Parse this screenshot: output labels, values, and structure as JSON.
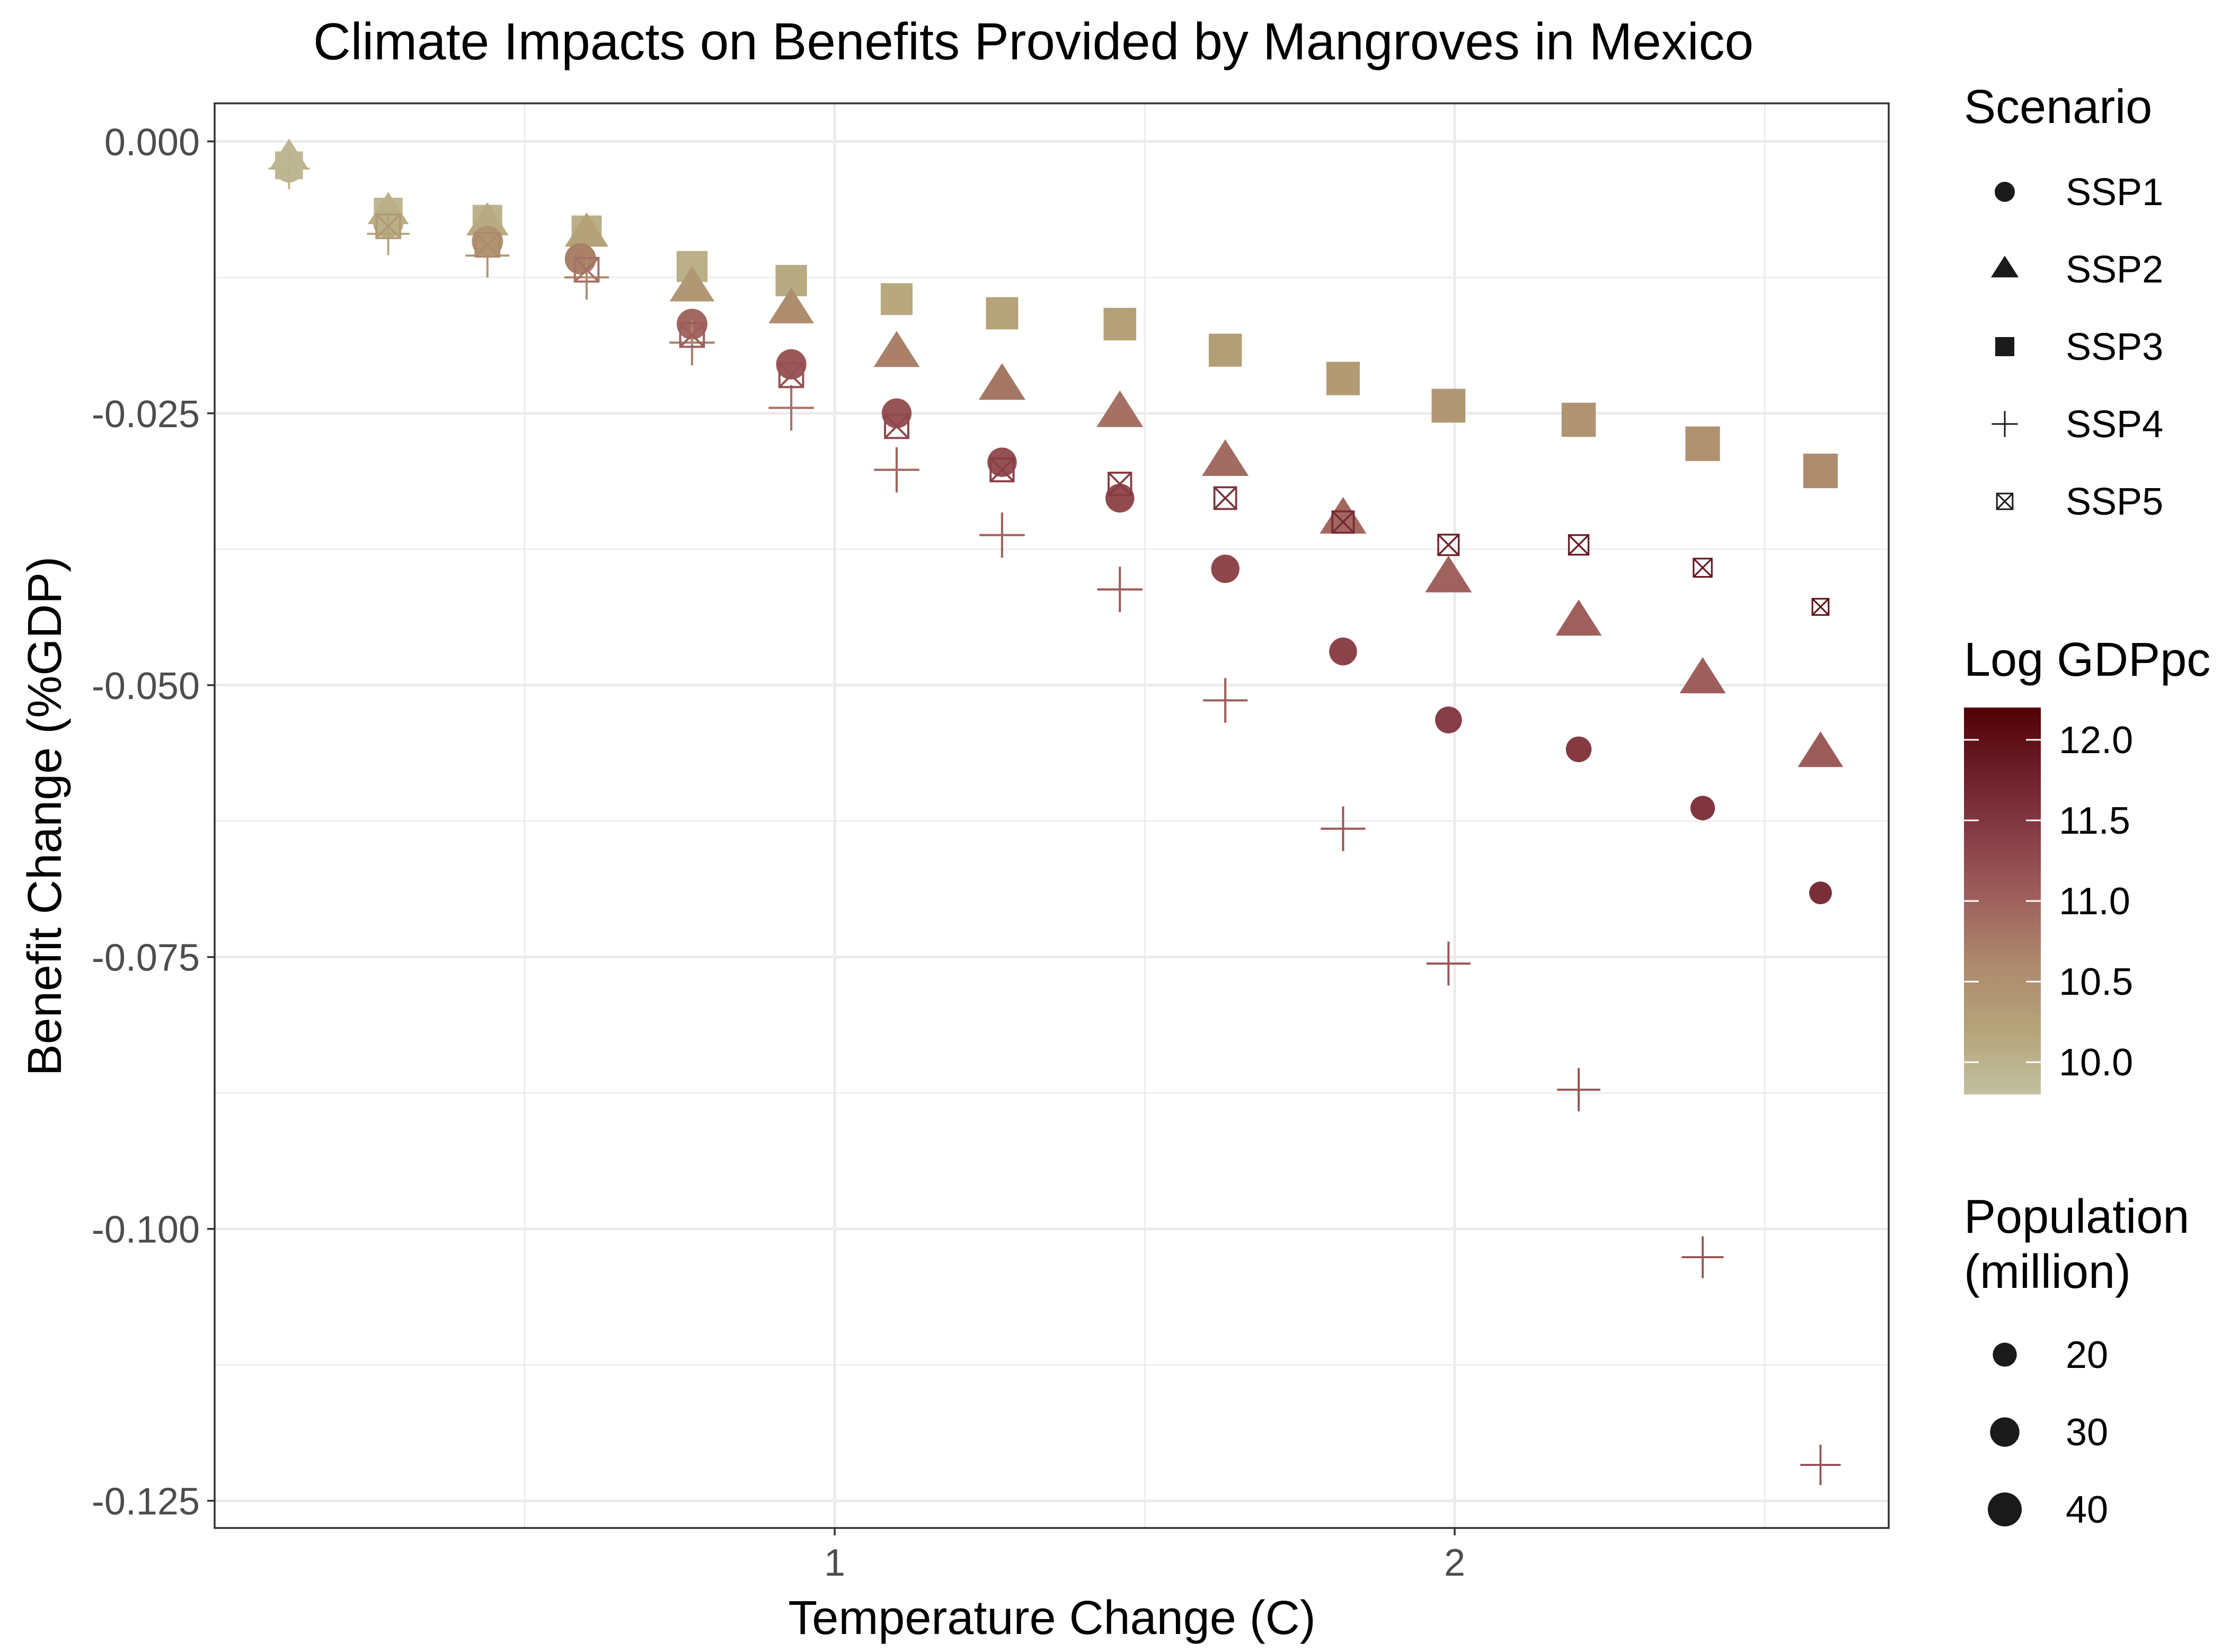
{
  "chart_data": {
    "type": "scatter",
    "title": "Climate Impacts on Benefits Provided by Mangroves in Mexico",
    "xlabel": "Temperature Change (C)",
    "ylabel": "Benefit Change (%GDP)",
    "xlim": [
      0.0,
      2.7
    ],
    "ylim": [
      -0.1275,
      0.0035
    ],
    "x_ticks": [
      1,
      2
    ],
    "x_tick_labels": [
      "1",
      "2"
    ],
    "y_ticks": [
      0.0,
      -0.025,
      -0.05,
      -0.075,
      -0.1,
      -0.125
    ],
    "y_tick_labels": [
      "0.000",
      "-0.025",
      "-0.050",
      "-0.075",
      "-0.100",
      "-0.125"
    ],
    "grid": true,
    "series": [
      {
        "name": "SSP1",
        "shape": "circle",
        "points": [
          {
            "x": 0.12,
            "y": -0.0025,
            "gdp": 9.95,
            "pop": 27
          },
          {
            "x": 0.28,
            "y": -0.0075,
            "gdp": 10.05,
            "pop": 32
          },
          {
            "x": 0.44,
            "y": -0.0092,
            "gdp": 10.45,
            "pop": 34
          },
          {
            "x": 0.59,
            "y": -0.0108,
            "gdp": 10.7,
            "pop": 34
          },
          {
            "x": 0.77,
            "y": -0.0168,
            "gdp": 10.95,
            "pop": 33
          },
          {
            "x": 0.93,
            "y": -0.0205,
            "gdp": 11.1,
            "pop": 32
          },
          {
            "x": 1.1,
            "y": -0.025,
            "gdp": 11.15,
            "pop": 31
          },
          {
            "x": 1.27,
            "y": -0.0295,
            "gdp": 11.2,
            "pop": 30
          },
          {
            "x": 1.46,
            "y": -0.0328,
            "gdp": 11.25,
            "pop": 29
          },
          {
            "x": 1.63,
            "y": -0.0393,
            "gdp": 11.3,
            "pop": 28
          },
          {
            "x": 1.82,
            "y": -0.0469,
            "gdp": 11.35,
            "pop": 27
          },
          {
            "x": 1.99,
            "y": -0.0532,
            "gdp": 11.4,
            "pop": 25
          },
          {
            "x": 2.2,
            "y": -0.0559,
            "gdp": 11.45,
            "pop": 23
          },
          {
            "x": 2.4,
            "y": -0.0613,
            "gdp": 11.5,
            "pop": 21
          },
          {
            "x": 2.59,
            "y": -0.0691,
            "gdp": 11.6,
            "pop": 18
          }
        ]
      },
      {
        "name": "SSP2",
        "shape": "triangle",
        "points": [
          {
            "x": 0.12,
            "y": -0.0015,
            "gdp": 9.95,
            "pop": 28
          },
          {
            "x": 0.28,
            "y": -0.0065,
            "gdp": 10.05,
            "pop": 31
          },
          {
            "x": 0.44,
            "y": -0.0075,
            "gdp": 10.1,
            "pop": 33
          },
          {
            "x": 0.6,
            "y": -0.0085,
            "gdp": 10.25,
            "pop": 35
          },
          {
            "x": 0.77,
            "y": -0.0135,
            "gdp": 10.4,
            "pop": 37
          },
          {
            "x": 0.93,
            "y": -0.0155,
            "gdp": 10.55,
            "pop": 38
          },
          {
            "x": 1.1,
            "y": -0.0195,
            "gdp": 10.7,
            "pop": 39
          },
          {
            "x": 1.27,
            "y": -0.0225,
            "gdp": 10.8,
            "pop": 40
          },
          {
            "x": 1.46,
            "y": -0.025,
            "gdp": 10.85,
            "pop": 40
          },
          {
            "x": 1.63,
            "y": -0.0295,
            "gdp": 10.9,
            "pop": 40
          },
          {
            "x": 1.82,
            "y": -0.0348,
            "gdp": 10.95,
            "pop": 40
          },
          {
            "x": 1.99,
            "y": -0.0402,
            "gdp": 11.0,
            "pop": 40
          },
          {
            "x": 2.2,
            "y": -0.0442,
            "gdp": 11.02,
            "pop": 39
          },
          {
            "x": 2.4,
            "y": -0.0495,
            "gdp": 11.04,
            "pop": 39
          },
          {
            "x": 2.59,
            "y": -0.0563,
            "gdp": 11.06,
            "pop": 38
          }
        ]
      },
      {
        "name": "SSP3",
        "shape": "square",
        "points": [
          {
            "x": 0.12,
            "y": -0.0022,
            "gdp": 9.9,
            "pop": 30
          },
          {
            "x": 0.28,
            "y": -0.0065,
            "gdp": 9.95,
            "pop": 32
          },
          {
            "x": 0.44,
            "y": -0.0072,
            "gdp": 10.0,
            "pop": 34
          },
          {
            "x": 0.6,
            "y": -0.0082,
            "gdp": 10.05,
            "pop": 35
          },
          {
            "x": 0.77,
            "y": -0.0115,
            "gdp": 10.05,
            "pop": 37
          },
          {
            "x": 0.93,
            "y": -0.0128,
            "gdp": 10.1,
            "pop": 38
          },
          {
            "x": 1.1,
            "y": -0.0145,
            "gdp": 10.15,
            "pop": 39
          },
          {
            "x": 1.27,
            "y": -0.0158,
            "gdp": 10.2,
            "pop": 40
          },
          {
            "x": 1.46,
            "y": -0.0168,
            "gdp": 10.25,
            "pop": 41
          },
          {
            "x": 1.63,
            "y": -0.0192,
            "gdp": 10.3,
            "pop": 42
          },
          {
            "x": 1.82,
            "y": -0.0218,
            "gdp": 10.35,
            "pop": 43
          },
          {
            "x": 1.99,
            "y": -0.0243,
            "gdp": 10.4,
            "pop": 44
          },
          {
            "x": 2.2,
            "y": -0.0256,
            "gdp": 10.45,
            "pop": 45
          },
          {
            "x": 2.4,
            "y": -0.0278,
            "gdp": 10.5,
            "pop": 46
          },
          {
            "x": 2.59,
            "y": -0.0303,
            "gdp": 10.55,
            "pop": 46
          }
        ]
      },
      {
        "name": "SSP4",
        "shape": "plus",
        "points": [
          {
            "x": 0.12,
            "y": -0.0025,
            "gdp": 10.0,
            "pop": 28
          },
          {
            "x": 0.28,
            "y": -0.0085,
            "gdp": 10.2,
            "pop": 30
          },
          {
            "x": 0.44,
            "y": -0.0105,
            "gdp": 10.4,
            "pop": 32
          },
          {
            "x": 0.6,
            "y": -0.0125,
            "gdp": 10.55,
            "pop": 33
          },
          {
            "x": 0.77,
            "y": -0.0185,
            "gdp": 10.7,
            "pop": 34
          },
          {
            "x": 0.93,
            "y": -0.0245,
            "gdp": 10.85,
            "pop": 34
          },
          {
            "x": 1.1,
            "y": -0.0302,
            "gdp": 10.95,
            "pop": 34
          },
          {
            "x": 1.27,
            "y": -0.0362,
            "gdp": 11.0,
            "pop": 34
          },
          {
            "x": 1.46,
            "y": -0.0412,
            "gdp": 11.05,
            "pop": 34
          },
          {
            "x": 1.63,
            "y": -0.0514,
            "gdp": 11.05,
            "pop": 33
          },
          {
            "x": 1.82,
            "y": -0.0632,
            "gdp": 11.1,
            "pop": 33
          },
          {
            "x": 1.99,
            "y": -0.0756,
            "gdp": 11.1,
            "pop": 32
          },
          {
            "x": 2.2,
            "y": -0.0872,
            "gdp": 11.15,
            "pop": 31
          },
          {
            "x": 2.4,
            "y": -0.1026,
            "gdp": 11.15,
            "pop": 29
          },
          {
            "x": 2.59,
            "y": -0.1217,
            "gdp": 11.2,
            "pop": 27
          }
        ]
      },
      {
        "name": "SSP5",
        "shape": "square-x",
        "points": [
          {
            "x": 0.12,
            "y": -0.0022,
            "gdp": 9.95,
            "pop": 27
          },
          {
            "x": 0.28,
            "y": -0.0078,
            "gdp": 10.35,
            "pop": 32
          },
          {
            "x": 0.44,
            "y": -0.0095,
            "gdp": 10.6,
            "pop": 32
          },
          {
            "x": 0.6,
            "y": -0.0118,
            "gdp": 10.85,
            "pop": 32
          },
          {
            "x": 0.77,
            "y": -0.0178,
            "gdp": 11.05,
            "pop": 32
          },
          {
            "x": 0.93,
            "y": -0.0215,
            "gdp": 11.2,
            "pop": 32
          },
          {
            "x": 1.1,
            "y": -0.0262,
            "gdp": 11.3,
            "pop": 31
          },
          {
            "x": 1.27,
            "y": -0.0302,
            "gdp": 11.4,
            "pop": 30
          },
          {
            "x": 1.46,
            "y": -0.0315,
            "gdp": 11.45,
            "pop": 29
          },
          {
            "x": 1.63,
            "y": -0.0328,
            "gdp": 11.55,
            "pop": 27
          },
          {
            "x": 1.82,
            "y": -0.035,
            "gdp": 11.65,
            "pop": 26
          },
          {
            "x": 1.99,
            "y": -0.0371,
            "gdp": 11.75,
            "pop": 24
          },
          {
            "x": 2.2,
            "y": -0.0371,
            "gdp": 11.85,
            "pop": 22
          },
          {
            "x": 2.4,
            "y": -0.0392,
            "gdp": 11.95,
            "pop": 19
          },
          {
            "x": 2.59,
            "y": -0.0428,
            "gdp": 12.05,
            "pop": 15
          }
        ]
      }
    ],
    "legend_placement": "right",
    "legend_scenario": {
      "title": "Scenario",
      "items": [
        {
          "label": "SSP1",
          "shape": "circle"
        },
        {
          "label": "SSP2",
          "shape": "triangle"
        },
        {
          "label": "SSP3",
          "shape": "square"
        },
        {
          "label": "SSP4",
          "shape": "plus"
        },
        {
          "label": "SSP5",
          "shape": "square-x"
        }
      ]
    },
    "legend_gdp": {
      "title": "Log GDPpc",
      "range": [
        9.8,
        12.2
      ],
      "ticks": [
        10.0,
        10.5,
        11.0,
        11.5,
        12.0
      ],
      "tick_labels": [
        "10.0",
        "10.5",
        "11.0",
        "11.5",
        "12.0"
      ],
      "color_low": "#c2c0a0",
      "color_high": "#520005",
      "color_stops": [
        "#c2c0a0",
        "#b5a47a",
        "#ad8a6d",
        "#a0625e",
        "#883e46",
        "#6c1f29",
        "#520005"
      ]
    },
    "legend_population": {
      "title_line1": "Population",
      "title_line2": "(million)",
      "items": [
        {
          "label": "20",
          "value": 20
        },
        {
          "label": "30",
          "value": 30
        },
        {
          "label": "40",
          "value": 40
        }
      ]
    },
    "colors": {
      "grid": "#ebebeb",
      "panel_border": "#333333",
      "axis_text": "#4d4d4d",
      "text": "#000000",
      "legend_symbol": "#1a1a1a"
    }
  }
}
